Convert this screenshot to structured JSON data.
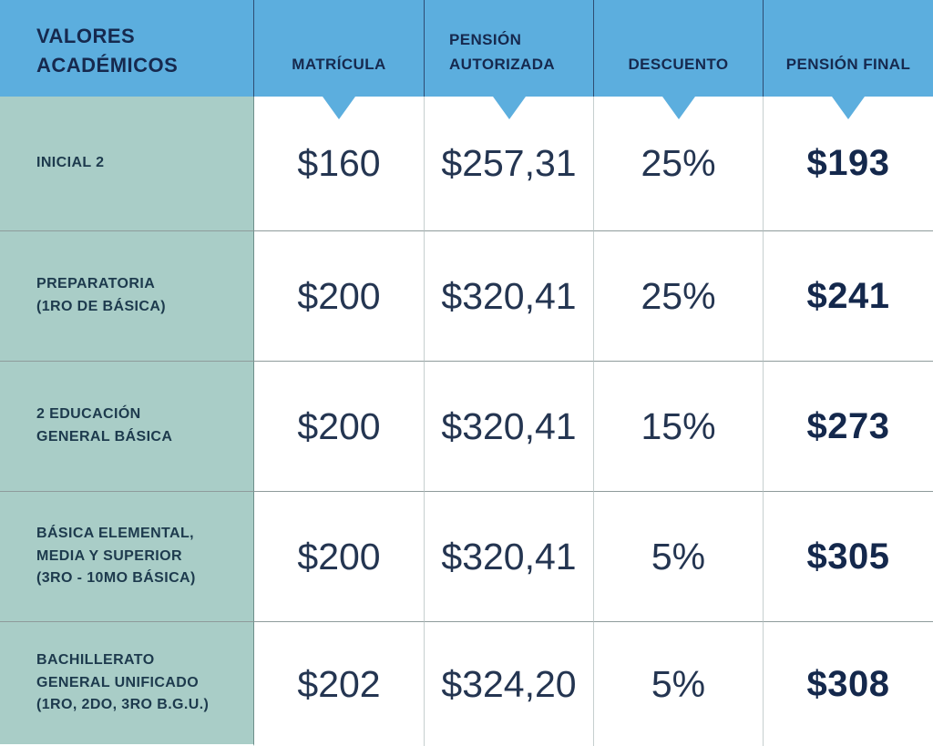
{
  "colors": {
    "header_bg": "#5CAEDE",
    "label_column_bg": "#A9CDC7",
    "header_text": "#16294E",
    "label_text": "#1D3A4D",
    "value_text": "#243551",
    "final_value_text": "#14284C",
    "grid_line_horizontal": "#8E9B9B",
    "grid_line_vertical": "#C6CFCF"
  },
  "header": {
    "title": "VALORES\nACADÉMICOS",
    "columns": [
      "MATRÍCULA",
      "PENSIÓN\nAUTORIZADA",
      "DESCUENTO",
      "PENSIÓN FINAL"
    ]
  },
  "rows": [
    {
      "label": "INICIAL 2",
      "matricula": "$160",
      "pension_autorizada": "$257,31",
      "descuento": "25%",
      "pension_final": "$193"
    },
    {
      "label": "PREPARATORIA\n(1RO DE BÁSICA)",
      "matricula": "$200",
      "pension_autorizada": "$320,41",
      "descuento": "25%",
      "pension_final": "$241"
    },
    {
      "label": "2 EDUCACIÓN\nGENERAL BÁSICA",
      "matricula": "$200",
      "pension_autorizada": "$320,41",
      "descuento": "15%",
      "pension_final": "$273"
    },
    {
      "label": "BÁSICA ELEMENTAL,\nMEDIA Y SUPERIOR\n(3RO - 10MO BÁSICA)",
      "matricula": "$200",
      "pension_autorizada": "$320,41",
      "descuento": "5%",
      "pension_final": "$305"
    },
    {
      "label": "BACHILLERATO\nGENERAL UNIFICADO\n(1RO, 2DO, 3RO B.G.U.)",
      "matricula": "$202",
      "pension_autorizada": "$324,20",
      "descuento": "5%",
      "pension_final": "$308"
    }
  ]
}
